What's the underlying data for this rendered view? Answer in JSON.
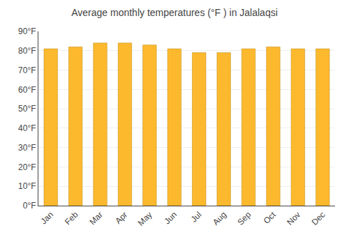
{
  "chart_data": {
    "type": "bar",
    "title": "Average monthly temperatures (°F ) in Jalalaqsi",
    "categories": [
      "Jan",
      "Feb",
      "Mar",
      "Apr",
      "May",
      "Jun",
      "Jul",
      "Aug",
      "Sep",
      "Oct",
      "Nov",
      "Dec"
    ],
    "values": [
      81,
      82,
      84,
      84,
      83,
      81,
      79,
      79,
      81,
      82,
      81,
      81
    ],
    "color": "#FDB92E",
    "ylim": [
      0,
      90
    ],
    "yticks": [
      {
        "value": 0,
        "label": "0°F"
      },
      {
        "value": 10,
        "label": "10°F"
      },
      {
        "value": 20,
        "label": "20°F"
      },
      {
        "value": 30,
        "label": "30°F"
      },
      {
        "value": 40,
        "label": "40°F"
      },
      {
        "value": 50,
        "label": "50°F"
      },
      {
        "value": 60,
        "label": "60°F"
      },
      {
        "value": 70,
        "label": "70°F"
      },
      {
        "value": 80,
        "label": "80°F"
      },
      {
        "value": 90,
        "label": "90°F"
      }
    ],
    "grid": true
  }
}
